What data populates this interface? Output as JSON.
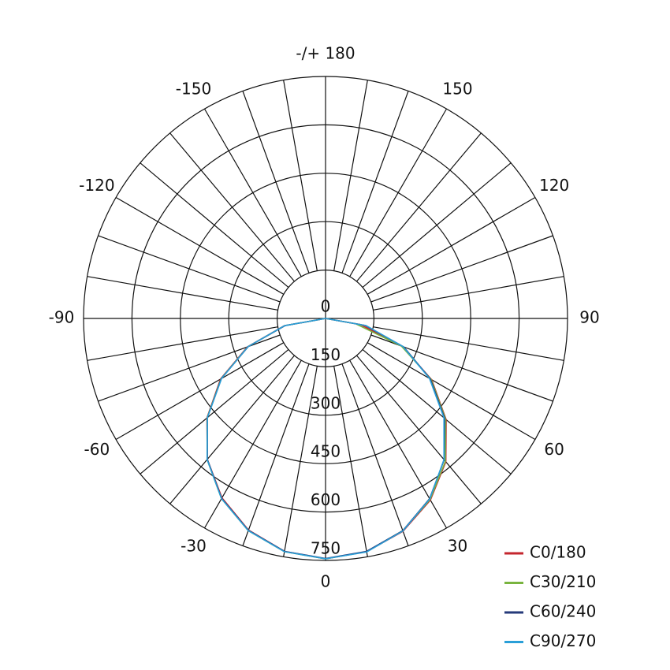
{
  "chart_data": {
    "type": "polar",
    "theta": [
      -90,
      -80,
      -70,
      -60,
      -50,
      -40,
      -30,
      -20,
      -10,
      0,
      10,
      20,
      30,
      40,
      50,
      60,
      70,
      80,
      90
    ],
    "rlim": [
      0,
      750
    ],
    "rticks": [
      0,
      150,
      300,
      450,
      600,
      750
    ],
    "thetaticks": [
      0,
      30,
      60,
      90,
      120,
      150,
      {
        "value": 180,
        "label": "-/+ 180"
      },
      -150,
      -120,
      -90,
      -60,
      -30
    ],
    "series": [
      {
        "name": "C0/180",
        "color": "#c4262e",
        "values": [
          0,
          130,
          258,
          376,
          480,
          570,
          642,
          698,
          733,
          745,
          734,
          702,
          650,
          580,
          488,
          380,
          252,
          110,
          0
        ]
      },
      {
        "name": "C30/210",
        "color": "#79b43f",
        "values": [
          0,
          128,
          256,
          374,
          479,
          571,
          645,
          700,
          734,
          745,
          734,
          700,
          648,
          578,
          486,
          378,
          250,
          95,
          0
        ]
      },
      {
        "name": "C60/240",
        "color": "#253a7a",
        "values": [
          0,
          127,
          255,
          373,
          478,
          570,
          644,
          699,
          733,
          744,
          733,
          700,
          645,
          572,
          482,
          375,
          258,
          125,
          0
        ]
      },
      {
        "name": "C90/270",
        "color": "#2a9fd8",
        "values": [
          0,
          129,
          256,
          372,
          478,
          571,
          645,
          700,
          734,
          745,
          735,
          701,
          646,
          571,
          479,
          372,
          256,
          128,
          0
        ]
      }
    ]
  }
}
